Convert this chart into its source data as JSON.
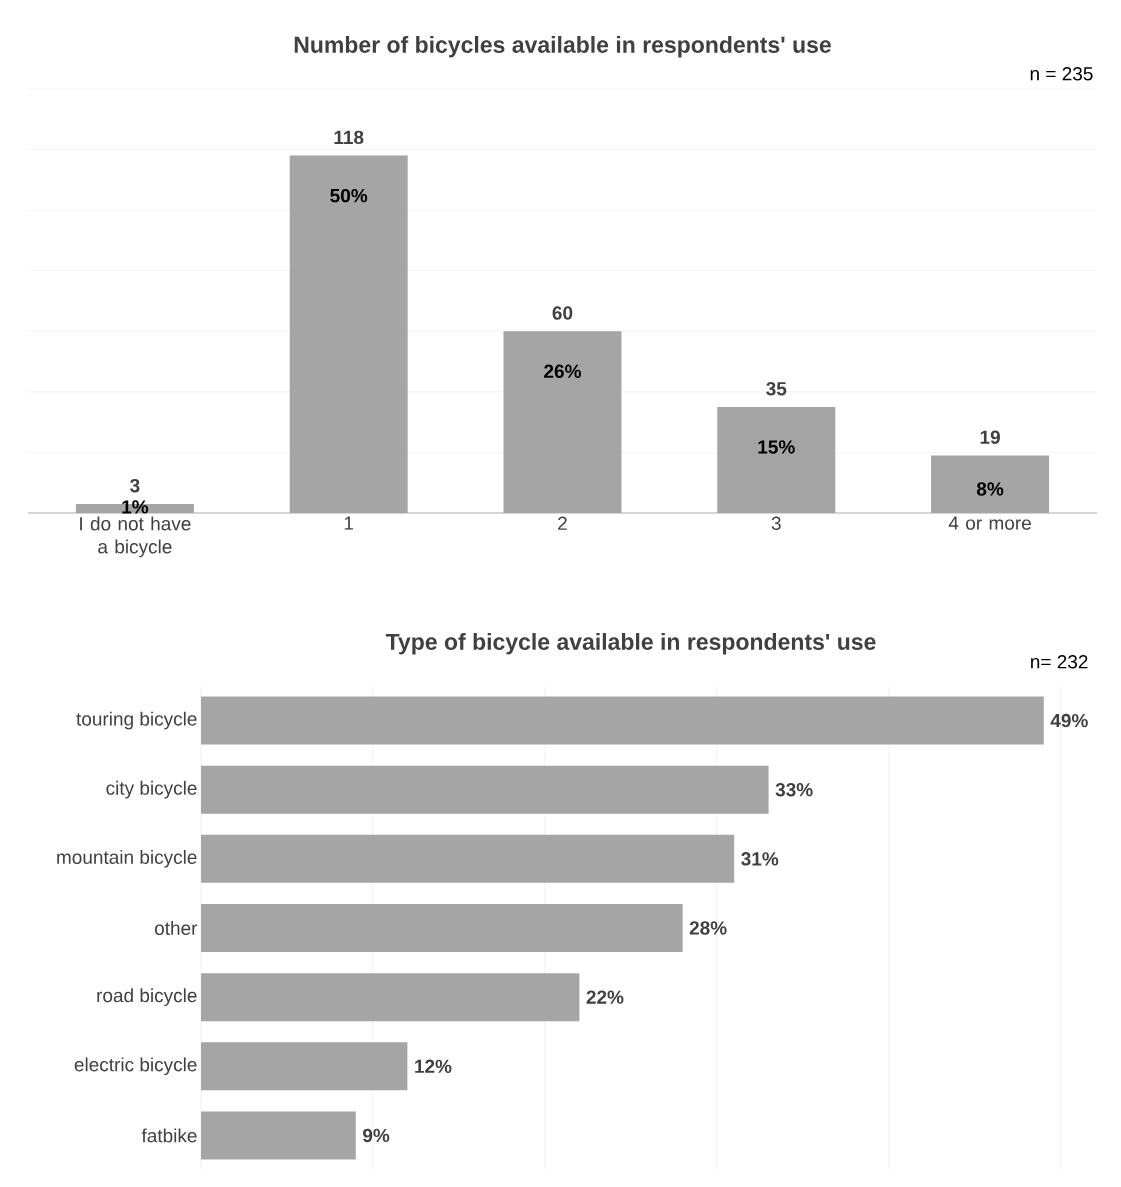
{
  "chart_data": [
    {
      "type": "bar",
      "title": "Number of bicycles available in respondents' use",
      "categories": [
        "I do not have a bicycle",
        "1",
        "2",
        "3",
        "4 or more"
      ],
      "values": [
        3,
        118,
        60,
        35,
        19
      ],
      "value_labels": [
        "3",
        "118",
        "60",
        "35",
        "19"
      ],
      "color": "#a5a5a5",
      "ylim": [
        0,
        140
      ],
      "yticks": [
        {
          "value": 0,
          "label": null
        },
        {
          "value": 20,
          "label": null
        },
        {
          "value": 40,
          "label": null
        },
        {
          "value": 60,
          "label": null
        },
        {
          "value": 80,
          "label": null
        },
        {
          "value": 100,
          "label": null
        },
        {
          "value": 120,
          "label": null
        },
        {
          "value": 140,
          "label": null
        }
      ],
      "grid": "y",
      "tick_labels": "x",
      "annotations": [
        "n = 235",
        "1%",
        "50%",
        "26%",
        "15%",
        "8%"
      ]
    },
    {
      "type": "bar",
      "orientation": "horizontal",
      "title": "Type of bicycle available in respondents' use",
      "categories": [
        "touring bicycle",
        "city bicycle",
        "mountain bicycle",
        "other",
        "road bicycle",
        "electric bicycle",
        "fatbike"
      ],
      "values": [
        49,
        33,
        31,
        28,
        22,
        12,
        9
      ],
      "value_labels": [
        "49%",
        "33%",
        "31%",
        "28%",
        "22%",
        "12%",
        "9%"
      ],
      "color": "#a5a5a5",
      "xlim": [
        0,
        50
      ],
      "xticks": [
        {
          "value": 0,
          "label": null
        },
        {
          "value": 10,
          "label": null
        },
        {
          "value": 20,
          "label": null
        },
        {
          "value": 30,
          "label": null
        },
        {
          "value": 40,
          "label": null
        },
        {
          "value": 50,
          "label": null
        }
      ],
      "grid": "x",
      "tick_labels": "y",
      "annotations": [
        "n= 232"
      ]
    }
  ]
}
